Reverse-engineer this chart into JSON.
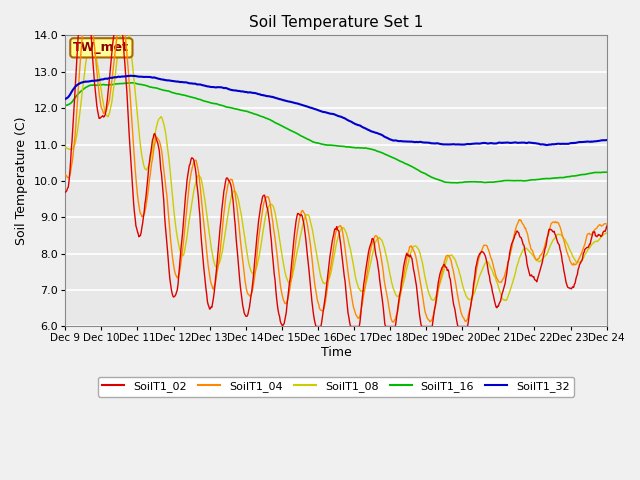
{
  "title": "Soil Temperature Set 1",
  "xlabel": "Time",
  "ylabel": "Soil Temperature (C)",
  "ylim": [
    6.0,
    14.0
  ],
  "xlim": [
    0,
    360
  ],
  "bg_color": "#e0e0e0",
  "plot_bg": "#e8e8e8",
  "annotation": "TW_met",
  "series_colors": {
    "SoilT1_02": "#dd0000",
    "SoilT1_04": "#ff8800",
    "SoilT1_08": "#cccc00",
    "SoilT1_16": "#00bb00",
    "SoilT1_32": "#0000cc"
  },
  "xtick_labels": [
    "Dec 9",
    "Dec 10",
    "Dec 11",
    "Dec 12",
    "Dec 13",
    "Dec 14",
    "Dec 15",
    "Dec 16",
    "Dec 17",
    "Dec 18",
    "Dec 19",
    "Dec 20",
    "Dec 21",
    "Dec 22",
    "Dec 23",
    "Dec 24"
  ],
  "xtick_positions": [
    0,
    24,
    48,
    72,
    96,
    120,
    144,
    168,
    192,
    216,
    240,
    264,
    288,
    312,
    336,
    360
  ],
  "ytick_labels": [
    "6.0",
    "7.0",
    "8.0",
    "9.0",
    "10.0",
    "11.0",
    "12.0",
    "13.0",
    "14.0"
  ],
  "ytick_positions": [
    6.0,
    7.0,
    8.0,
    9.0,
    10.0,
    11.0,
    12.0,
    13.0,
    14.0
  ]
}
